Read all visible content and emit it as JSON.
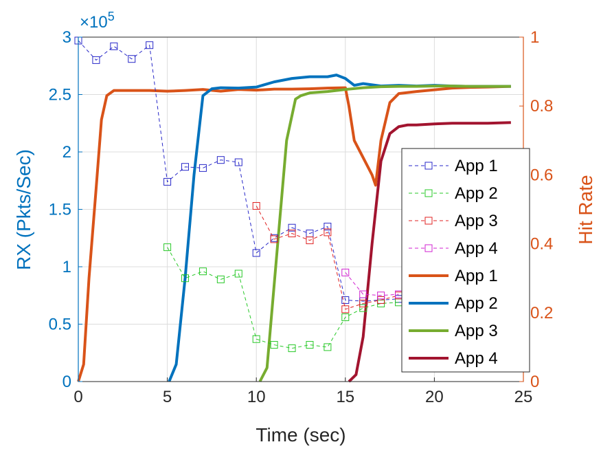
{
  "chart_data": {
    "type": "line",
    "xlabel": "Time (sec)",
    "ylabel_left": "RX (Pkts/Sec)",
    "ylabel_right": "Hit Rate",
    "left_axis_exponent": "×10^5",
    "exponent_base": "×10",
    "exponent_power": "5",
    "xlim": [
      0,
      25
    ],
    "ylim_left": [
      0,
      3
    ],
    "ylim_right": [
      0,
      1
    ],
    "xticks": [
      0,
      5,
      10,
      15,
      20,
      25
    ],
    "xtick_labels": [
      "0",
      "5",
      "10",
      "15",
      "20",
      "25"
    ],
    "yticks_left": [
      0,
      0.5,
      1,
      1.5,
      2,
      2.5,
      3
    ],
    "ytick_labels_left": [
      "0",
      "0.5",
      "1",
      "1.5",
      "2",
      "2.5",
      "3"
    ],
    "yticks_right": [
      0,
      0.2,
      0.4,
      0.6,
      0.8,
      1
    ],
    "ytick_labels_right": [
      "0",
      "0.2",
      "0.4",
      "0.6",
      "0.8",
      "1"
    ],
    "grid": true,
    "legend_position": "right",
    "colors": {
      "left_axis": "#0072BD",
      "right_axis": "#D95319",
      "app1_rx": "#2727C8",
      "app2_rx": "#27C827",
      "app3_rx": "#E02020",
      "app4_rx": "#D020D0",
      "app1_hit": "#D95319",
      "app2_hit": "#0072BD",
      "app3_hit": "#77AC30",
      "app4_hit": "#A2142F"
    },
    "rx_series": [
      {
        "name": "App 1",
        "axis": "left",
        "style": "dashed-square",
        "x": [
          0,
          1,
          2,
          3,
          4,
          5,
          6,
          7,
          8,
          9,
          10,
          11,
          12,
          13,
          14,
          15,
          16,
          17,
          18
        ],
        "y": [
          2.97,
          2.8,
          2.92,
          2.81,
          2.93,
          1.74,
          1.87,
          1.86,
          1.93,
          1.91,
          1.12,
          1.25,
          1.34,
          1.29,
          1.35,
          0.71,
          0.7,
          0.71,
          0.72
        ]
      },
      {
        "name": "App 2",
        "axis": "left",
        "style": "dashed-square",
        "x": [
          5,
          6,
          7,
          8,
          9,
          10,
          11,
          12,
          13,
          14,
          15,
          16,
          17,
          18
        ],
        "y": [
          1.17,
          0.9,
          0.96,
          0.89,
          0.94,
          0.37,
          0.32,
          0.29,
          0.32,
          0.3,
          0.56,
          0.64,
          0.68,
          0.69
        ]
      },
      {
        "name": "App 3",
        "axis": "left",
        "style": "dashed-square",
        "x": [
          10,
          11,
          12,
          13,
          14,
          15,
          16,
          17,
          18
        ],
        "y": [
          1.53,
          1.24,
          1.29,
          1.23,
          1.3,
          0.63,
          0.68,
          0.71,
          0.75
        ]
      },
      {
        "name": "App 4",
        "axis": "left",
        "style": "dashed-square",
        "x": [
          15,
          16,
          17,
          18
        ],
        "y": [
          0.95,
          0.76,
          0.75,
          0.76
        ]
      }
    ],
    "hit_series": [
      {
        "name": "App 1",
        "axis": "right",
        "style": "solid",
        "x": [
          0,
          0.3,
          0.6,
          1.0,
          1.3,
          1.6,
          2,
          3,
          4,
          5,
          6,
          7,
          8,
          9,
          10,
          11,
          12,
          13,
          14,
          15,
          15.2,
          15.5,
          16,
          16.5,
          16.7,
          17,
          17.5,
          18,
          19,
          20,
          21,
          22,
          23,
          24.3
        ],
        "y": [
          0,
          0.05,
          0.3,
          0.56,
          0.76,
          0.83,
          0.845,
          0.845,
          0.845,
          0.843,
          0.845,
          0.848,
          0.843,
          0.848,
          0.846,
          0.849,
          0.849,
          0.85,
          0.852,
          0.853,
          0.8,
          0.7,
          0.65,
          0.6,
          0.57,
          0.7,
          0.81,
          0.836,
          0.842,
          0.847,
          0.852,
          0.854,
          0.855,
          0.857
        ]
      },
      {
        "name": "App 2",
        "axis": "right",
        "style": "solid",
        "x": [
          5.1,
          5.5,
          6,
          6.5,
          7,
          7.5,
          8,
          9,
          10,
          11,
          12,
          13,
          14,
          14.5,
          15,
          15.5,
          16,
          17,
          18,
          19,
          20,
          21,
          22,
          23,
          24.3
        ],
        "y": [
          0,
          0.05,
          0.3,
          0.6,
          0.83,
          0.85,
          0.853,
          0.852,
          0.855,
          0.87,
          0.88,
          0.885,
          0.885,
          0.89,
          0.88,
          0.86,
          0.865,
          0.858,
          0.86,
          0.858,
          0.86,
          0.858,
          0.857,
          0.857,
          0.857
        ]
      },
      {
        "name": "App 3",
        "axis": "right",
        "style": "solid",
        "x": [
          10.2,
          10.6,
          11.2,
          11.7,
          12.2,
          12.5,
          13,
          14,
          15,
          16,
          17,
          18,
          19,
          20,
          21,
          22,
          23,
          24.3
        ],
        "y": [
          0,
          0.04,
          0.4,
          0.7,
          0.82,
          0.83,
          0.838,
          0.842,
          0.848,
          0.853,
          0.856,
          0.857,
          0.857,
          0.858,
          0.858,
          0.857,
          0.857,
          0.857
        ]
      },
      {
        "name": "App 4",
        "axis": "right",
        "style": "solid",
        "x": [
          15.2,
          15.6,
          16,
          16.5,
          17,
          17.5,
          18,
          18.5,
          19,
          20,
          21,
          22,
          23,
          24.3
        ],
        "y": [
          0,
          0.02,
          0.13,
          0.4,
          0.64,
          0.72,
          0.74,
          0.745,
          0.745,
          0.748,
          0.75,
          0.75,
          0.75,
          0.752
        ]
      }
    ],
    "legend": [
      {
        "label": "App 1",
        "style": "dashed-square",
        "color_key": "app1_rx"
      },
      {
        "label": "App 2",
        "style": "dashed-square",
        "color_key": "app2_rx"
      },
      {
        "label": "App 3",
        "style": "dashed-square",
        "color_key": "app3_rx"
      },
      {
        "label": "App 4",
        "style": "dashed-square",
        "color_key": "app4_rx"
      },
      {
        "label": "App 1",
        "style": "solid",
        "color_key": "app1_hit"
      },
      {
        "label": "App 2",
        "style": "solid",
        "color_key": "app2_hit"
      },
      {
        "label": "App 3",
        "style": "solid",
        "color_key": "app3_hit"
      },
      {
        "label": "App 4",
        "style": "solid",
        "color_key": "app4_hit"
      }
    ]
  }
}
